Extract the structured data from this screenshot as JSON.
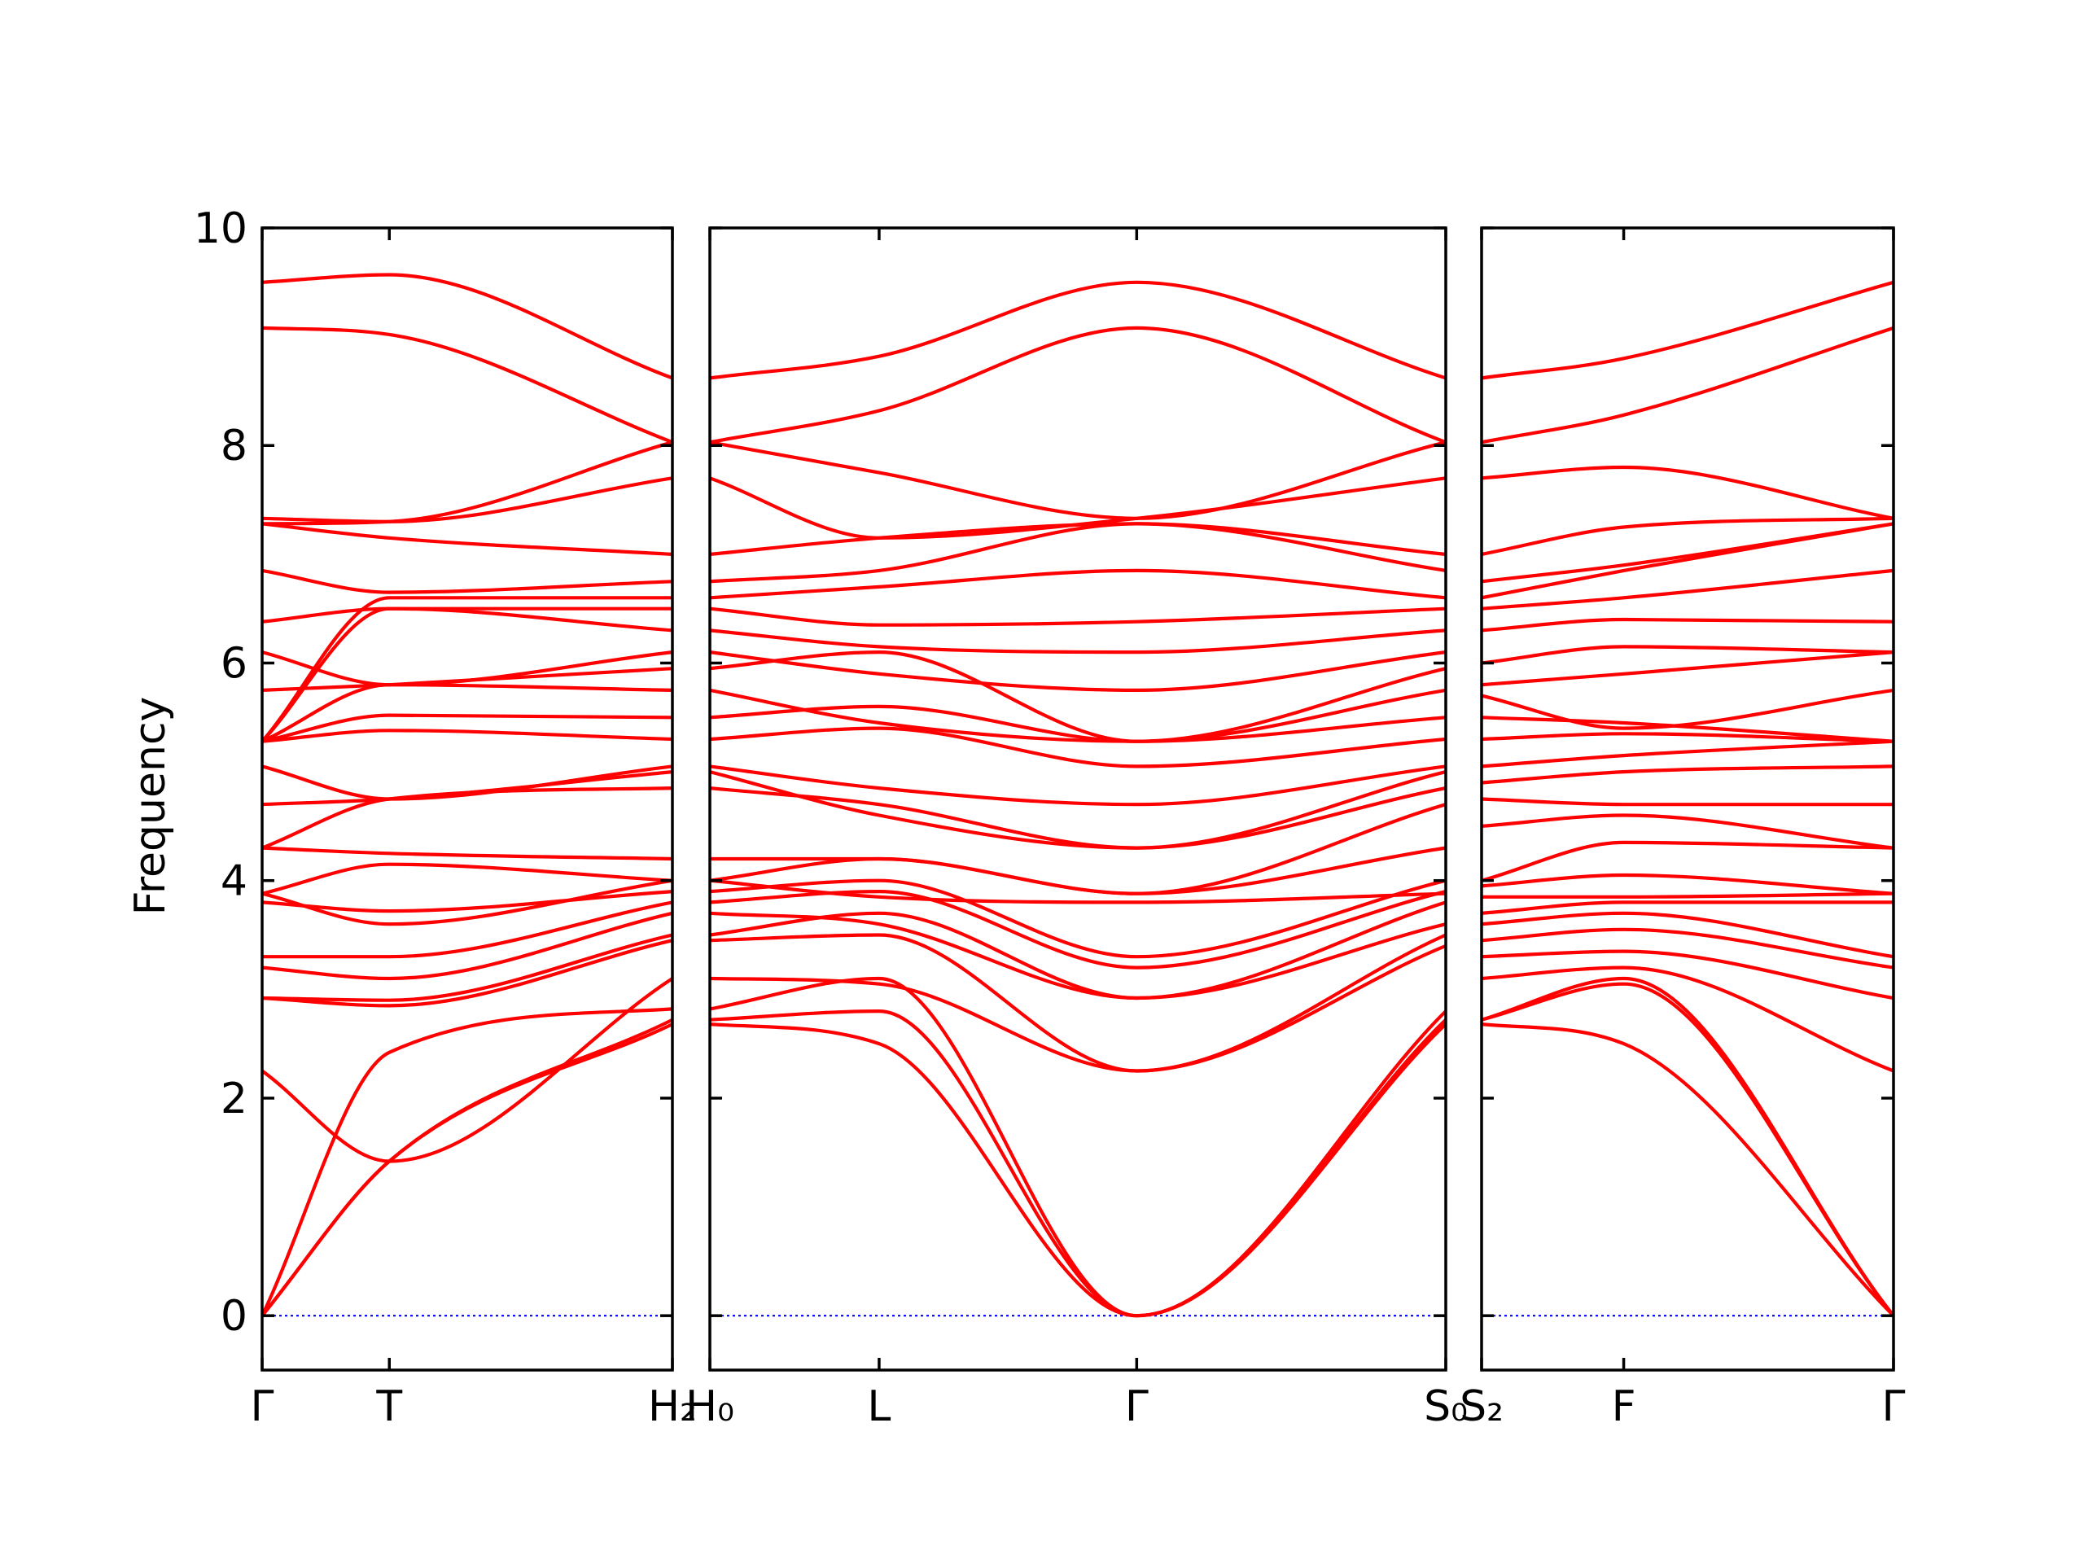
{
  "chart_data": {
    "type": "line",
    "title": "",
    "ylabel": "Frequency",
    "ylim": [
      -0.5,
      10
    ],
    "yticks": [
      0,
      2,
      4,
      6,
      8,
      10
    ],
    "band_color": "#ff0000",
    "zero_line_color": "#0000ff",
    "panels": [
      {
        "name": "panel-1",
        "xticks": [
          "Γ",
          "T",
          "H₂"
        ],
        "xtick_pos": [
          0,
          0.31,
          1
        ],
        "bands": [
          {
            "x": [
              0,
              0.31,
              1
            ],
            "y": [
              0,
              1.42,
              2.68
            ]
          },
          {
            "x": [
              0,
              0.31,
              1
            ],
            "y": [
              0,
              1.42,
              2.72
            ]
          },
          {
            "x": [
              0,
              0.31,
              1
            ],
            "y": [
              0,
              2.42,
              2.82
            ]
          },
          {
            "x": [
              0,
              0.31,
              1
            ],
            "y": [
              2.25,
              1.42,
              3.1
            ]
          },
          {
            "x": [
              0,
              0.31,
              1
            ],
            "y": [
              2.92,
              2.85,
              3.45
            ]
          },
          {
            "x": [
              0,
              0.31,
              1
            ],
            "y": [
              2.92,
              2.9,
              3.5
            ]
          },
          {
            "x": [
              0,
              0.31,
              1
            ],
            "y": [
              3.2,
              3.1,
              3.7
            ]
          },
          {
            "x": [
              0,
              0.31,
              1
            ],
            "y": [
              3.3,
              3.3,
              3.8
            ]
          },
          {
            "x": [
              0,
              0.31,
              1
            ],
            "y": [
              3.8,
              3.72,
              3.9
            ]
          },
          {
            "x": [
              0,
              0.31,
              1
            ],
            "y": [
              3.88,
              3.6,
              4.0
            ]
          },
          {
            "x": [
              0,
              0.31,
              1
            ],
            "y": [
              3.88,
              4.15,
              4.0
            ]
          },
          {
            "x": [
              0,
              0.31,
              1
            ],
            "y": [
              4.3,
              4.25,
              4.2
            ]
          },
          {
            "x": [
              0,
              0.31,
              1
            ],
            "y": [
              4.3,
              4.75,
              4.85
            ]
          },
          {
            "x": [
              0,
              0.31,
              1
            ],
            "y": [
              4.7,
              4.75,
              5.0
            ]
          },
          {
            "x": [
              0,
              0.31,
              1
            ],
            "y": [
              5.05,
              4.75,
              5.05
            ]
          },
          {
            "x": [
              0,
              0.31,
              1
            ],
            "y": [
              5.28,
              5.38,
              5.3
            ]
          },
          {
            "x": [
              0,
              0.31,
              1
            ],
            "y": [
              5.28,
              5.52,
              5.5
            ]
          },
          {
            "x": [
              0,
              0.31,
              1
            ],
            "y": [
              5.28,
              5.8,
              5.75
            ]
          },
          {
            "x": [
              0,
              0.31,
              1
            ],
            "y": [
              5.75,
              5.8,
              5.95
            ]
          },
          {
            "x": [
              0,
              0.31,
              1
            ],
            "y": [
              6.1,
              5.8,
              6.1
            ]
          },
          {
            "x": [
              0,
              0.31,
              1
            ],
            "y": [
              5.28,
              6.5,
              6.3
            ]
          },
          {
            "x": [
              0,
              0.31,
              1
            ],
            "y": [
              6.38,
              6.5,
              6.5
            ]
          },
          {
            "x": [
              0,
              0.31,
              1
            ],
            "y": [
              5.28,
              6.6,
              6.6
            ]
          },
          {
            "x": [
              0,
              0.31,
              1
            ],
            "y": [
              6.85,
              6.65,
              6.75
            ]
          },
          {
            "x": [
              0,
              0.31,
              1
            ],
            "y": [
              7.28,
              7.15,
              7.0
            ]
          },
          {
            "x": [
              0,
              0.31,
              1
            ],
            "y": [
              7.33,
              7.3,
              7.7
            ]
          },
          {
            "x": [
              0,
              0.31,
              1
            ],
            "y": [
              7.28,
              7.3,
              8.03
            ]
          },
          {
            "x": [
              0,
              0.31,
              1
            ],
            "y": [
              9.08,
              9.02,
              8.03
            ]
          },
          {
            "x": [
              0,
              0.31,
              1
            ],
            "y": [
              9.5,
              9.57,
              8.62
            ]
          }
        ]
      },
      {
        "name": "panel-2",
        "xticks": [
          "H₀",
          "L",
          "Γ",
          "S₀"
        ],
        "xtick_pos": [
          0,
          0.23,
          0.58,
          1
        ],
        "bands": [
          {
            "x": [
              0,
              0.23,
              0.58,
              1
            ],
            "y": [
              2.68,
              2.5,
              0,
              2.68
            ]
          },
          {
            "x": [
              0,
              0.23,
              0.58,
              1
            ],
            "y": [
              2.72,
              2.8,
              0,
              2.72
            ]
          },
          {
            "x": [
              0,
              0.23,
              0.58,
              1
            ],
            "y": [
              2.82,
              3.1,
              0,
              2.8
            ]
          },
          {
            "x": [
              0,
              0.23,
              0.58,
              1
            ],
            "y": [
              3.1,
              3.05,
              2.25,
              3.4
            ]
          },
          {
            "x": [
              0,
              0.23,
              0.58,
              1
            ],
            "y": [
              3.45,
              3.5,
              2.25,
              3.5
            ]
          },
          {
            "x": [
              0,
              0.23,
              0.58,
              1
            ],
            "y": [
              3.5,
              3.7,
              2.92,
              3.6
            ]
          },
          {
            "x": [
              0,
              0.23,
              0.58,
              1
            ],
            "y": [
              3.7,
              3.6,
              2.92,
              3.8
            ]
          },
          {
            "x": [
              0,
              0.23,
              0.58,
              1
            ],
            "y": [
              3.8,
              3.9,
              3.2,
              3.9
            ]
          },
          {
            "x": [
              0,
              0.23,
              0.58,
              1
            ],
            "y": [
              3.9,
              4.0,
              3.3,
              4.0
            ]
          },
          {
            "x": [
              0,
              0.23,
              0.58,
              1
            ],
            "y": [
              4.0,
              3.85,
              3.8,
              3.88
            ]
          },
          {
            "x": [
              0,
              0.23,
              0.58,
              1
            ],
            "y": [
              4.0,
              4.2,
              3.88,
              4.3
            ]
          },
          {
            "x": [
              0,
              0.23,
              0.58,
              1
            ],
            "y": [
              4.2,
              4.2,
              3.88,
              4.7
            ]
          },
          {
            "x": [
              0,
              0.23,
              0.58,
              1
            ],
            "y": [
              4.85,
              4.7,
              4.3,
              4.85
            ]
          },
          {
            "x": [
              0,
              0.23,
              0.58,
              1
            ],
            "y": [
              5.0,
              4.6,
              4.3,
              5.0
            ]
          },
          {
            "x": [
              0,
              0.23,
              0.58,
              1
            ],
            "y": [
              5.05,
              4.85,
              4.7,
              5.05
            ]
          },
          {
            "x": [
              0,
              0.23,
              0.58,
              1
            ],
            "y": [
              5.3,
              5.4,
              5.05,
              5.3
            ]
          },
          {
            "x": [
              0,
              0.23,
              0.58,
              1
            ],
            "y": [
              5.5,
              5.6,
              5.28,
              5.5
            ]
          },
          {
            "x": [
              0,
              0.23,
              0.58,
              1
            ],
            "y": [
              5.75,
              5.45,
              5.28,
              5.75
            ]
          },
          {
            "x": [
              0,
              0.23,
              0.58,
              1
            ],
            "y": [
              5.95,
              6.1,
              5.28,
              5.95
            ]
          },
          {
            "x": [
              0,
              0.23,
              0.58,
              1
            ],
            "y": [
              6.1,
              5.9,
              5.75,
              6.1
            ]
          },
          {
            "x": [
              0,
              0.23,
              0.58,
              1
            ],
            "y": [
              6.3,
              6.15,
              6.1,
              6.3
            ]
          },
          {
            "x": [
              0,
              0.23,
              0.58,
              1
            ],
            "y": [
              6.5,
              6.35,
              6.38,
              6.5
            ]
          },
          {
            "x": [
              0,
              0.23,
              0.58,
              1
            ],
            "y": [
              6.6,
              6.7,
              6.85,
              6.6
            ]
          },
          {
            "x": [
              0,
              0.23,
              0.58,
              1
            ],
            "y": [
              6.75,
              6.85,
              7.28,
              6.85
            ]
          },
          {
            "x": [
              0,
              0.23,
              0.58,
              1
            ],
            "y": [
              7.0,
              7.15,
              7.28,
              7.0
            ]
          },
          {
            "x": [
              0,
              0.23,
              0.58,
              1
            ],
            "y": [
              7.7,
              7.15,
              7.33,
              7.7
            ]
          },
          {
            "x": [
              0,
              0.23,
              0.58,
              1
            ],
            "y": [
              8.03,
              7.75,
              7.33,
              8.03
            ]
          },
          {
            "x": [
              0,
              0.23,
              0.58,
              1
            ],
            "y": [
              8.03,
              8.32,
              9.08,
              8.03
            ]
          },
          {
            "x": [
              0,
              0.23,
              0.58,
              1
            ],
            "y": [
              8.62,
              8.82,
              9.5,
              8.62
            ]
          }
        ]
      },
      {
        "name": "panel-3",
        "xticks": [
          "S₂",
          "F",
          "Γ"
        ],
        "xtick_pos": [
          0,
          0.345,
          1
        ],
        "bands": [
          {
            "x": [
              0,
              0.345,
              1
            ],
            "y": [
              2.68,
              2.5,
              0
            ]
          },
          {
            "x": [
              0,
              0.345,
              1
            ],
            "y": [
              2.72,
              3.05,
              0
            ]
          },
          {
            "x": [
              0,
              0.345,
              1
            ],
            "y": [
              2.72,
              3.1,
              0
            ]
          },
          {
            "x": [
              0,
              0.345,
              1
            ],
            "y": [
              3.1,
              3.2,
              2.25
            ]
          },
          {
            "x": [
              0,
              0.345,
              1
            ],
            "y": [
              3.3,
              3.35,
              2.92
            ]
          },
          {
            "x": [
              0,
              0.345,
              1
            ],
            "y": [
              3.45,
              3.55,
              3.2
            ]
          },
          {
            "x": [
              0,
              0.345,
              1
            ],
            "y": [
              3.6,
              3.7,
              3.3
            ]
          },
          {
            "x": [
              0,
              0.345,
              1
            ],
            "y": [
              3.7,
              3.8,
              3.8
            ]
          },
          {
            "x": [
              0,
              0.345,
              1
            ],
            "y": [
              3.85,
              3.85,
              3.88
            ]
          },
          {
            "x": [
              0,
              0.345,
              1
            ],
            "y": [
              3.95,
              4.05,
              3.88
            ]
          },
          {
            "x": [
              0,
              0.345,
              1
            ],
            "y": [
              4.0,
              4.35,
              4.3
            ]
          },
          {
            "x": [
              0,
              0.345,
              1
            ],
            "y": [
              4.5,
              4.6,
              4.3
            ]
          },
          {
            "x": [
              0,
              0.345,
              1
            ],
            "y": [
              4.75,
              4.7,
              4.7
            ]
          },
          {
            "x": [
              0,
              0.345,
              1
            ],
            "y": [
              4.9,
              5.0,
              5.05
            ]
          },
          {
            "x": [
              0,
              0.345,
              1
            ],
            "y": [
              5.05,
              5.15,
              5.28
            ]
          },
          {
            "x": [
              0,
              0.345,
              1
            ],
            "y": [
              5.3,
              5.35,
              5.28
            ]
          },
          {
            "x": [
              0,
              0.345,
              1
            ],
            "y": [
              5.5,
              5.45,
              5.28
            ]
          },
          {
            "x": [
              0,
              0.345,
              1
            ],
            "y": [
              5.7,
              5.4,
              5.75
            ]
          },
          {
            "x": [
              0,
              0.345,
              1
            ],
            "y": [
              5.8,
              5.9,
              6.1
            ]
          },
          {
            "x": [
              0,
              0.345,
              1
            ],
            "y": [
              6.0,
              6.15,
              6.1
            ]
          },
          {
            "x": [
              0,
              0.345,
              1
            ],
            "y": [
              6.3,
              6.4,
              6.38
            ]
          },
          {
            "x": [
              0,
              0.345,
              1
            ],
            "y": [
              6.5,
              6.6,
              6.85
            ]
          },
          {
            "x": [
              0,
              0.345,
              1
            ],
            "y": [
              6.6,
              6.85,
              7.28
            ]
          },
          {
            "x": [
              0,
              0.345,
              1
            ],
            "y": [
              6.75,
              6.9,
              7.28
            ]
          },
          {
            "x": [
              0,
              0.345,
              1
            ],
            "y": [
              7.0,
              7.25,
              7.33
            ]
          },
          {
            "x": [
              0,
              0.345,
              1
            ],
            "y": [
              7.7,
              7.8,
              7.33
            ]
          },
          {
            "x": [
              0,
              0.345,
              1
            ],
            "y": [
              8.03,
              8.28,
              9.08
            ]
          },
          {
            "x": [
              0,
              0.345,
              1
            ],
            "y": [
              8.62,
              8.8,
              9.5
            ]
          }
        ]
      }
    ]
  }
}
